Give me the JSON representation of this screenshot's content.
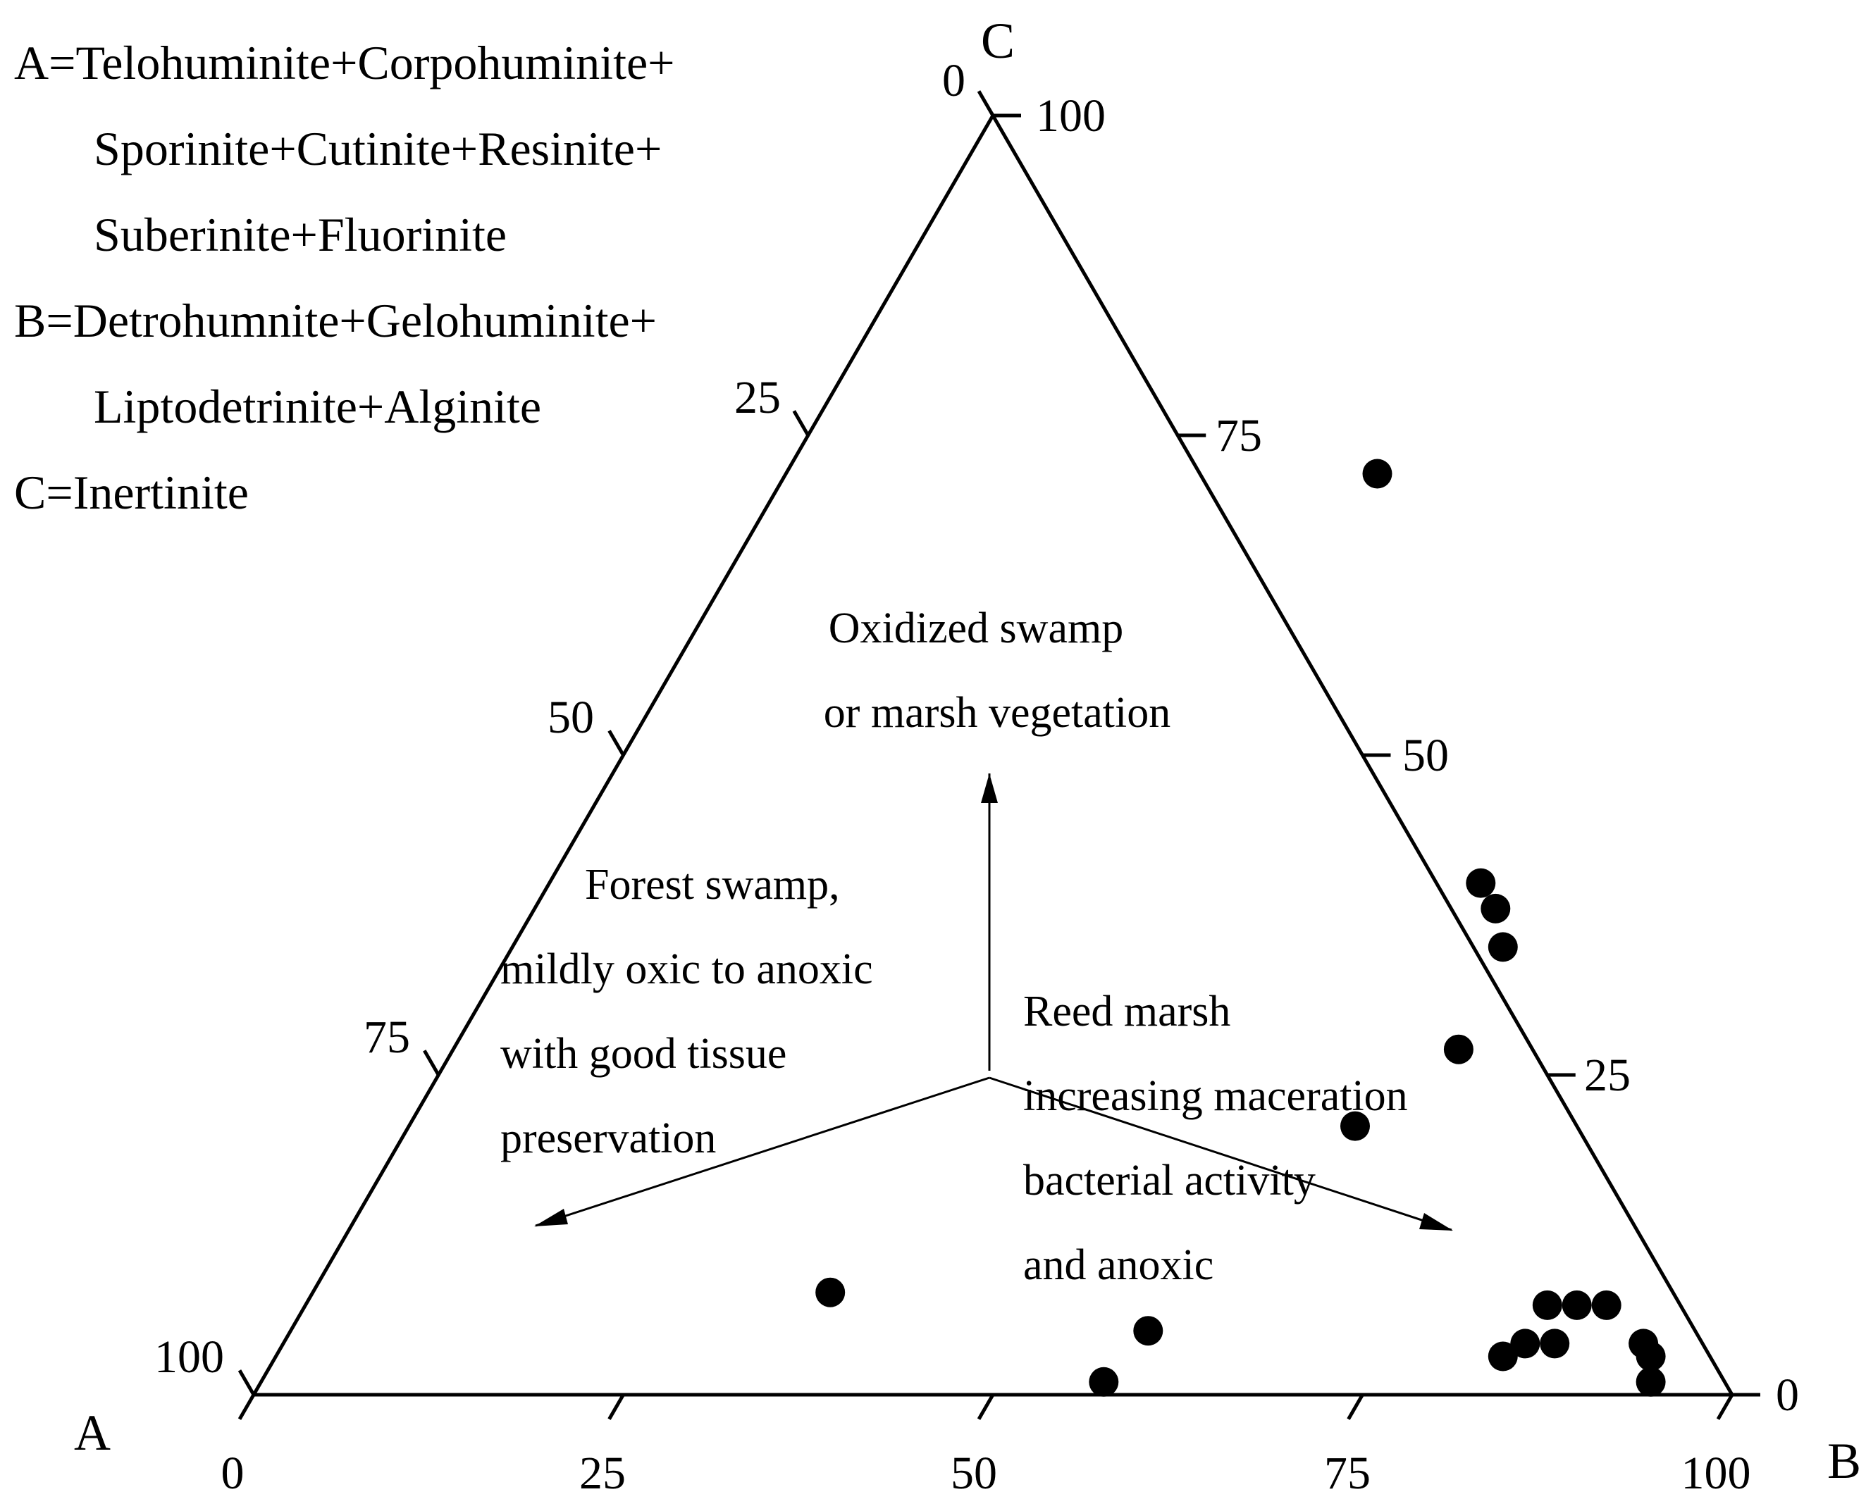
{
  "legend": [
    "A=Telohuminite+Corpohuminite+",
    "Sporinite+Cutinite+Resinite+",
    "Suberinite+Fluorinite",
    "B=Detrohumnite+Gelohuminite+",
    "Liptodetrinite+Alginite",
    "C=Inertinite"
  ],
  "chart_data": {
    "type": "scatter",
    "subtype": "ternary",
    "vertices": {
      "a": "A",
      "b": "B",
      "c": "C"
    },
    "axes": {
      "ab_ticks": [
        "0",
        "25",
        "50",
        "75",
        "100"
      ],
      "bc_ticks": [
        "0",
        "25",
        "50",
        "75",
        "100"
      ],
      "ca_ticks": [
        "100",
        "75",
        "50",
        "25",
        "0"
      ]
    },
    "regions": [
      {
        "lines": [
          "Oxidized swamp",
          "or marsh vegetation"
        ]
      },
      {
        "lines": [
          "Forest swamp,",
          "mildly oxic to anoxic",
          "with good tissue",
          "preservation"
        ]
      },
      {
        "lines": [
          "Reed marsh",
          "increasing maceration",
          "bacterial activity",
          "and anoxic"
        ]
      }
    ],
    "points": [
      {
        "b": 40,
        "c": 72
      },
      {
        "b": 63,
        "c": 40
      },
      {
        "b": 65,
        "c": 38
      },
      {
        "b": 67,
        "c": 35
      },
      {
        "b": 68,
        "c": 27
      },
      {
        "b": 64,
        "c": 21
      },
      {
        "b": 35,
        "c": 8
      },
      {
        "b": 58,
        "c": 5
      },
      {
        "b": 57,
        "c": 1
      },
      {
        "b": 84,
        "c": 7
      },
      {
        "b": 86,
        "c": 7
      },
      {
        "b": 88,
        "c": 7
      },
      {
        "b": 86,
        "c": 4
      },
      {
        "b": 84,
        "c": 4
      },
      {
        "b": 83,
        "c": 3
      },
      {
        "b": 92,
        "c": 4
      },
      {
        "b": 93,
        "c": 3
      },
      {
        "b": 94,
        "c": 1
      }
    ]
  }
}
